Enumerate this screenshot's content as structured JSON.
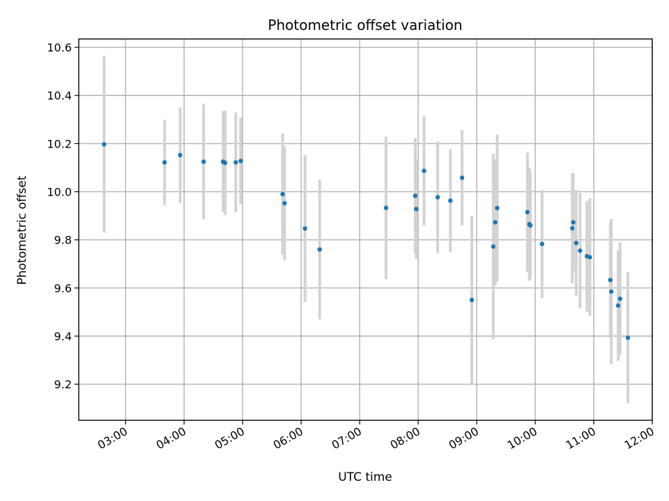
{
  "chart_data": {
    "type": "scatter",
    "title": "Photometric offset variation",
    "xlabel": "UTC time",
    "ylabel": "Photometric offset",
    "xlim": [
      "02:12",
      "12:00"
    ],
    "ylim": [
      9.05,
      10.635
    ],
    "x_ticks": [
      "03:00",
      "04:00",
      "05:00",
      "06:00",
      "07:00",
      "08:00",
      "09:00",
      "10:00",
      "11:00",
      "12:00"
    ],
    "y_ticks": [
      "9.2",
      "9.4",
      "9.6",
      "9.8",
      "10.0",
      "10.2",
      "10.4",
      "10.6"
    ],
    "grid": true,
    "colors": {
      "marker": "#1f77b4",
      "errorbar": "#d3d3d3",
      "grid": "#b0b0b0"
    },
    "series": [
      {
        "points": [
          {
            "x": "02:38",
            "y": 10.197,
            "err": 0.367
          },
          {
            "x": "03:40",
            "y": 10.122,
            "err": 0.178
          },
          {
            "x": "03:56",
            "y": 10.152,
            "err": 0.198
          },
          {
            "x": "04:20",
            "y": 10.125,
            "err": 0.24
          },
          {
            "x": "04:40",
            "y": 10.125,
            "err": 0.21
          },
          {
            "x": "04:42",
            "y": 10.12,
            "err": 0.217
          },
          {
            "x": "04:53",
            "y": 10.122,
            "err": 0.208
          },
          {
            "x": "04:58",
            "y": 10.128,
            "err": 0.18
          },
          {
            "x": "05:41",
            "y": 9.99,
            "err": 0.252
          },
          {
            "x": "05:43",
            "y": 9.952,
            "err": 0.237
          },
          {
            "x": "06:04",
            "y": 9.847,
            "err": 0.305
          },
          {
            "x": "06:19",
            "y": 9.76,
            "err": 0.29
          },
          {
            "x": "07:27",
            "y": 9.933,
            "err": 0.296
          },
          {
            "x": "07:57",
            "y": 9.983,
            "err": 0.24
          },
          {
            "x": "07:58",
            "y": 9.928,
            "err": 0.208
          },
          {
            "x": "08:06",
            "y": 10.087,
            "err": 0.228
          },
          {
            "x": "08:20",
            "y": 9.977,
            "err": 0.232
          },
          {
            "x": "08:33",
            "y": 9.963,
            "err": 0.214
          },
          {
            "x": "08:45",
            "y": 10.058,
            "err": 0.198
          },
          {
            "x": "08:55",
            "y": 9.55,
            "err": 0.35
          },
          {
            "x": "09:17",
            "y": 9.772,
            "err": 0.385
          },
          {
            "x": "09:19",
            "y": 9.873,
            "err": 0.262
          },
          {
            "x": "09:21",
            "y": 9.932,
            "err": 0.305
          },
          {
            "x": "09:52",
            "y": 9.915,
            "err": 0.248
          },
          {
            "x": "09:54",
            "y": 9.865,
            "err": 0.235
          },
          {
            "x": "09:55",
            "y": 9.86,
            "err": 0.22
          },
          {
            "x": "10:07",
            "y": 9.783,
            "err": 0.225
          },
          {
            "x": "10:38",
            "y": 9.848,
            "err": 0.23
          },
          {
            "x": "10:39",
            "y": 9.873,
            "err": 0.205
          },
          {
            "x": "10:42",
            "y": 9.787,
            "err": 0.22
          },
          {
            "x": "10:46",
            "y": 9.755,
            "err": 0.24
          },
          {
            "x": "10:53",
            "y": 9.732,
            "err": 0.23
          },
          {
            "x": "10:56",
            "y": 9.728,
            "err": 0.245
          },
          {
            "x": "11:17",
            "y": 9.633,
            "err": 0.24
          },
          {
            "x": "11:18",
            "y": 9.585,
            "err": 0.302
          },
          {
            "x": "11:25",
            "y": 9.527,
            "err": 0.23
          },
          {
            "x": "11:27",
            "y": 9.555,
            "err": 0.235
          },
          {
            "x": "11:35",
            "y": 9.393,
            "err": 0.272
          }
        ]
      }
    ]
  }
}
